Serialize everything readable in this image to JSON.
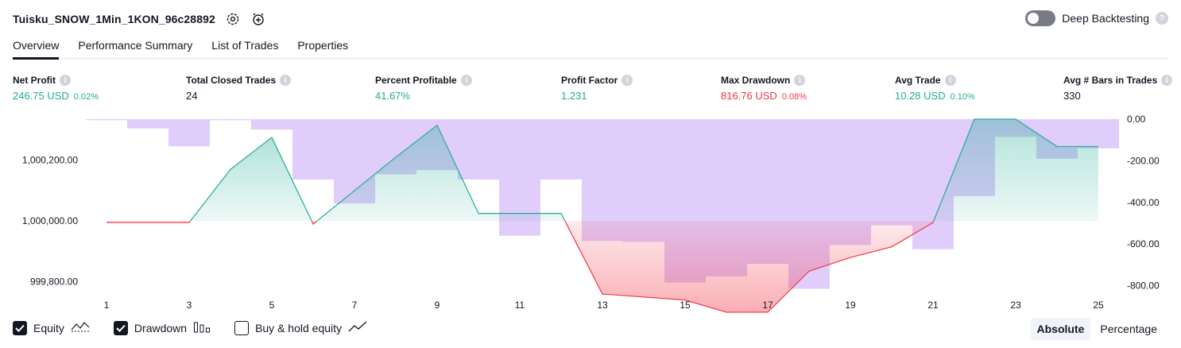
{
  "header": {
    "strategy_name": "Tuisku_SNOW_1Min_1KON_96c28892",
    "deep_backtesting_label": "Deep Backtesting",
    "deep_backtesting_on": false
  },
  "tabs": [
    {
      "label": "Overview",
      "active": true
    },
    {
      "label": "Performance Summary",
      "active": false
    },
    {
      "label": "List of Trades",
      "active": false
    },
    {
      "label": "Properties",
      "active": false
    }
  ],
  "metrics": {
    "net_profit": {
      "label": "Net Profit",
      "value": "246.75 USD",
      "pct": "0.02%"
    },
    "total_closed_trades": {
      "label": "Total Closed Trades",
      "value": "24"
    },
    "percent_profitable": {
      "label": "Percent Profitable",
      "value": "41.67%"
    },
    "profit_factor": {
      "label": "Profit Factor",
      "value": "1.231"
    },
    "max_drawdown": {
      "label": "Max Drawdown",
      "value": "816.76 USD",
      "pct": "0.08%"
    },
    "avg_trade": {
      "label": "Avg Trade",
      "value": "10.28 USD",
      "pct": "0.10%"
    },
    "avg_bars": {
      "label": "Avg # Bars in Trades",
      "value": "330"
    }
  },
  "colors": {
    "green": "#22ab94",
    "red": "#f23645",
    "drawdown_bar": "#dcc4fb",
    "equity_line": "#22ab94",
    "equity_fill": "#d7f1ec",
    "loss_fill": "#fbc9c9"
  },
  "chart_data": {
    "type": "area",
    "equity_axis": {
      "position": "left",
      "ticks": [
        999800,
        1000000,
        1000200
      ],
      "tick_labels": [
        "999,800.00",
        "1,000,000.00",
        "1,000,200.00"
      ],
      "range": [
        999760,
        1000335
      ],
      "baseline": 1000000
    },
    "drawdown_axis": {
      "position": "right",
      "ticks": [
        0,
        -200,
        -400,
        -600,
        -800
      ],
      "tick_labels": [
        "0.00",
        "-200.00",
        "-400.00",
        "-600.00",
        "-800.00"
      ],
      "range": [
        -840,
        0
      ]
    },
    "x": [
      1,
      2,
      3,
      4,
      5,
      6,
      7,
      8,
      9,
      10,
      11,
      12,
      13,
      14,
      15,
      16,
      17,
      18,
      19,
      20,
      21,
      22,
      23,
      24,
      25
    ],
    "x_tick_labels": [
      "1",
      "3",
      "5",
      "7",
      "9",
      "11",
      "13",
      "15",
      "17",
      "19",
      "21",
      "23",
      "25"
    ],
    "equity": [
      999995,
      999995,
      999995,
      1000170,
      1000275,
      999990,
      1000100,
      1000210,
      1000315,
      1000025,
      1000025,
      1000025,
      999760,
      999750,
      999740,
      999700,
      999700,
      999835,
      999880,
      999915,
      999995,
      1000335,
      1000335,
      1000245,
      1000245
    ],
    "drawdown": [
      -5,
      -45,
      -130,
      -5,
      -50,
      -290,
      -405,
      -265,
      -245,
      -290,
      -560,
      -290,
      -585,
      -590,
      -785,
      -755,
      -695,
      -815,
      -605,
      -510,
      -625,
      -370,
      -85,
      -190,
      -140
    ],
    "legend": {
      "equity": {
        "label": "Equity",
        "checked": true
      },
      "drawdown": {
        "label": "Drawdown",
        "checked": true
      },
      "buy_hold": {
        "label": "Buy & hold equity",
        "checked": false
      }
    },
    "modes": [
      {
        "label": "Absolute",
        "active": true
      },
      {
        "label": "Percentage",
        "active": false
      }
    ]
  }
}
